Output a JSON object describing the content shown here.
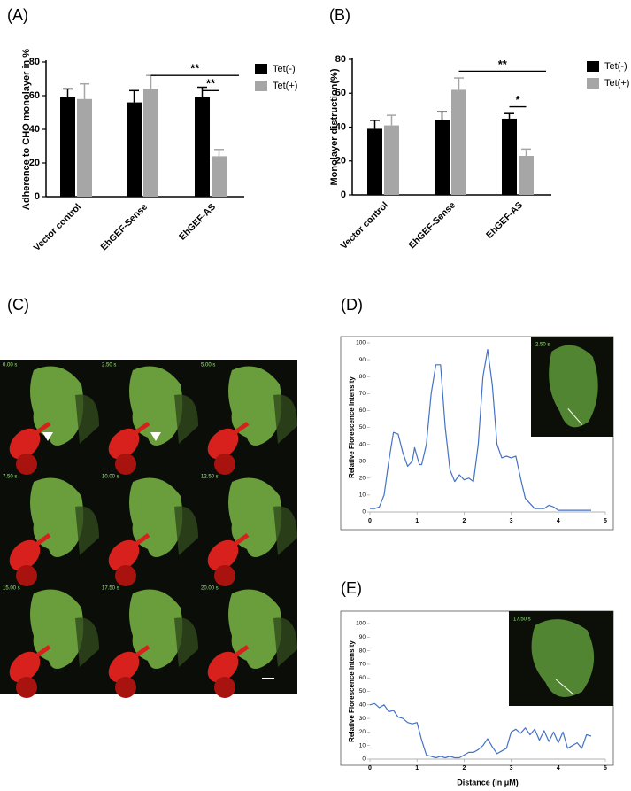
{
  "chart_data": [
    {
      "type": "bar",
      "panel": "(A)",
      "ylabel": "Adherence to CHO monolayer in %",
      "categories": [
        "Vector control",
        "EhGEF-Sense",
        "EhGEF-AS"
      ],
      "series": [
        {
          "name": "Tet(-)",
          "color": "#000000",
          "values": [
            59,
            56,
            59
          ],
          "errors": [
            5,
            7,
            6
          ]
        },
        {
          "name": "Tet(+)",
          "color": "#a6a6a6",
          "values": [
            58,
            64,
            24
          ],
          "errors": [
            9,
            8,
            4
          ]
        }
      ],
      "ylim": [
        0,
        80
      ],
      "yticks": [
        0,
        20,
        40,
        60,
        80
      ],
      "annotations": [
        {
          "text": "**",
          "y": 72,
          "from": 1,
          "to": 2
        },
        {
          "text": "**",
          "y": 63,
          "from": 2,
          "to": 2
        }
      ]
    },
    {
      "type": "bar",
      "panel": "(B)",
      "ylabel": "Monolayer distruction(%)",
      "categories": [
        "Vector control",
        "EhGEF-Sense",
        "EhGEF-AS"
      ],
      "series": [
        {
          "name": "Tet(-)",
          "color": "#000000",
          "values": [
            39,
            44,
            45
          ],
          "errors": [
            5,
            5,
            3
          ]
        },
        {
          "name": "Tet(+)",
          "color": "#a6a6a6",
          "values": [
            41,
            62,
            23
          ],
          "errors": [
            6,
            7,
            4
          ]
        }
      ],
      "ylim": [
        0,
        80
      ],
      "yticks": [
        0,
        20,
        40,
        60,
        80
      ],
      "annotations": [
        {
          "text": "**",
          "y": 73,
          "from": 1,
          "to": 2
        },
        {
          "text": "*",
          "y": 52,
          "from": 2,
          "to": 2
        }
      ]
    },
    {
      "type": "line",
      "panel": "(D)",
      "ylabel": "Relative Florescence intensity",
      "inset_label": "2.50 s",
      "x": [
        0,
        0.1,
        0.2,
        0.3,
        0.4,
        0.5,
        0.6,
        0.7,
        0.8,
        0.9,
        0.95,
        1.0,
        1.05,
        1.1,
        1.2,
        1.3,
        1.4,
        1.5,
        1.6,
        1.7,
        1.8,
        1.9,
        2.0,
        2.1,
        2.2,
        2.3,
        2.4,
        2.5,
        2.6,
        2.7,
        2.8,
        2.9,
        3.0,
        3.1,
        3.2,
        3.3,
        3.5,
        3.7,
        3.8,
        3.9,
        4.0,
        4.2,
        4.5,
        4.7
      ],
      "series": [
        {
          "color": "#4472c4",
          "values": [
            2,
            2,
            3,
            10,
            30,
            47,
            46,
            35,
            27,
            30,
            38,
            33,
            28,
            28,
            40,
            70,
            87,
            87,
            50,
            25,
            18,
            22,
            19,
            20,
            18,
            40,
            80,
            96,
            75,
            40,
            32,
            33,
            32,
            33,
            20,
            8,
            2,
            2,
            4,
            3,
            1,
            1,
            1,
            1
          ]
        }
      ],
      "xlim": [
        0,
        5
      ],
      "xticks": [
        0,
        1,
        2,
        3,
        4,
        5
      ],
      "ylim": [
        0,
        100
      ],
      "yticks": [
        0,
        10,
        20,
        30,
        40,
        50,
        60,
        70,
        80,
        90,
        100
      ]
    },
    {
      "type": "line",
      "panel": "(E)",
      "ylabel": "Relative Florescence intensity",
      "xlabel": "Distance (in μM)",
      "inset_label": "17.50 s",
      "x": [
        0,
        0.1,
        0.2,
        0.3,
        0.4,
        0.5,
        0.6,
        0.7,
        0.8,
        0.9,
        1.0,
        1.1,
        1.2,
        1.3,
        1.4,
        1.5,
        1.6,
        1.7,
        1.8,
        1.9,
        2.0,
        2.1,
        2.2,
        2.3,
        2.4,
        2.5,
        2.6,
        2.7,
        2.8,
        2.9,
        3.0,
        3.1,
        3.2,
        3.3,
        3.4,
        3.5,
        3.6,
        3.7,
        3.8,
        3.9,
        4.0,
        4.1,
        4.2,
        4.3,
        4.4,
        4.5,
        4.6,
        4.7
      ],
      "series": [
        {
          "color": "#4472c4",
          "values": [
            40,
            41,
            38,
            40,
            35,
            36,
            31,
            30,
            27,
            26,
            27,
            14,
            3,
            2,
            1,
            2,
            1,
            2,
            1,
            1,
            3,
            5,
            5,
            7,
            10,
            15,
            9,
            4,
            6,
            8,
            20,
            22,
            19,
            23,
            18,
            22,
            14,
            21,
            13,
            20,
            12,
            20,
            8,
            10,
            12,
            8,
            18,
            17
          ]
        }
      ],
      "xlim": [
        0,
        5
      ],
      "xticks": [
        0,
        1,
        2,
        3,
        4,
        5
      ],
      "ylim": [
        0,
        100
      ],
      "yticks": [
        0,
        10,
        20,
        30,
        40,
        50,
        60,
        70,
        80,
        90,
        100
      ]
    }
  ],
  "image_panel": {
    "panel": "(C)",
    "frames": [
      "0.00 s",
      "2.50 s",
      "5.00 s",
      "7.50 s",
      "10.00 s",
      "12.50 s",
      "15.00 s",
      "17.50 s",
      "20.00 s"
    ]
  }
}
